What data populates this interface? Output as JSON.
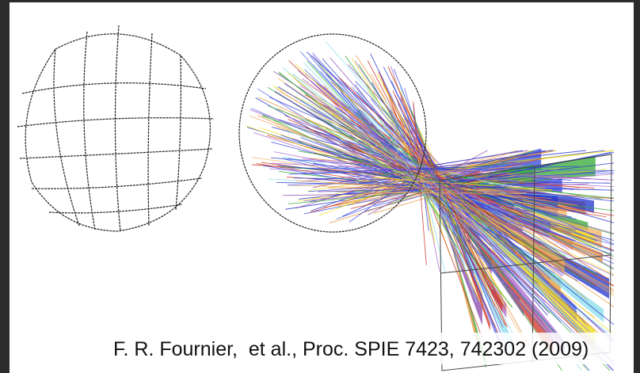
{
  "caption": "F. R. Fournier,  et al., Proc. SPIE 7423, 742302 (2009)"
}
